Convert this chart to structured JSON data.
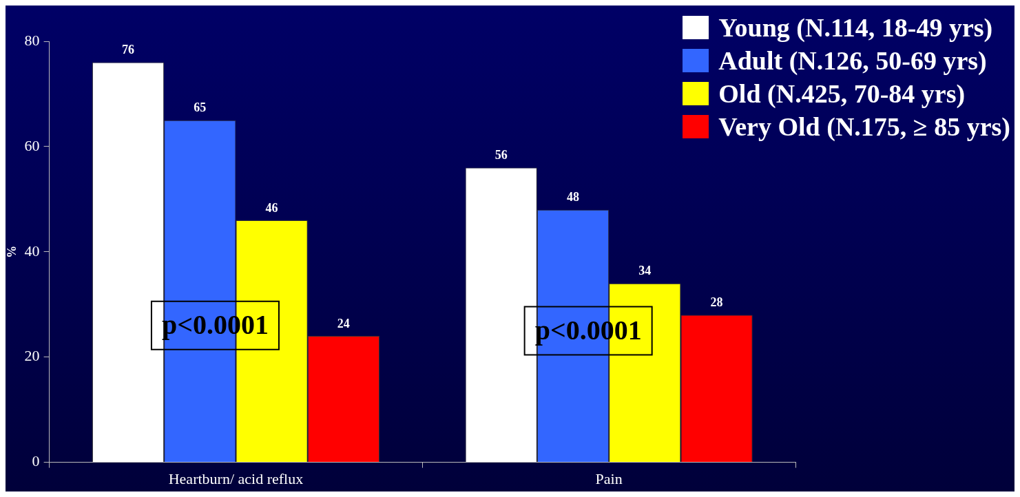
{
  "chart_data": {
    "type": "bar",
    "ylabel": "%",
    "categories": [
      "Heartburn/ acid reflux",
      "Pain"
    ],
    "series": [
      {
        "name": "Young (N.114, 18-49 yrs)",
        "color": "#ffffff",
        "values": [
          76,
          56
        ]
      },
      {
        "name": "Adult (N.126, 50-69 yrs)",
        "color": "#3366ff",
        "values": [
          65,
          48
        ]
      },
      {
        "name": "Old (N.425, 70-84 yrs)",
        "color": "#ffff00",
        "values": [
          46,
          34
        ]
      },
      {
        "name": "Very Old (N.175, ≥ 85 yrs)",
        "color": "#ff0000",
        "values": [
          24,
          28
        ]
      }
    ],
    "ylim": [
      0,
      80
    ],
    "yticks": [
      0,
      20,
      40,
      60,
      80
    ],
    "grid": false,
    "legend": "top right",
    "data_labels": true,
    "annotations": [
      {
        "text": "p<0.0001",
        "x": "Heartburn/ acid reflux",
        "y": 26
      },
      {
        "text": "p<0.0001",
        "x": "Pain",
        "y": 25
      }
    ]
  }
}
